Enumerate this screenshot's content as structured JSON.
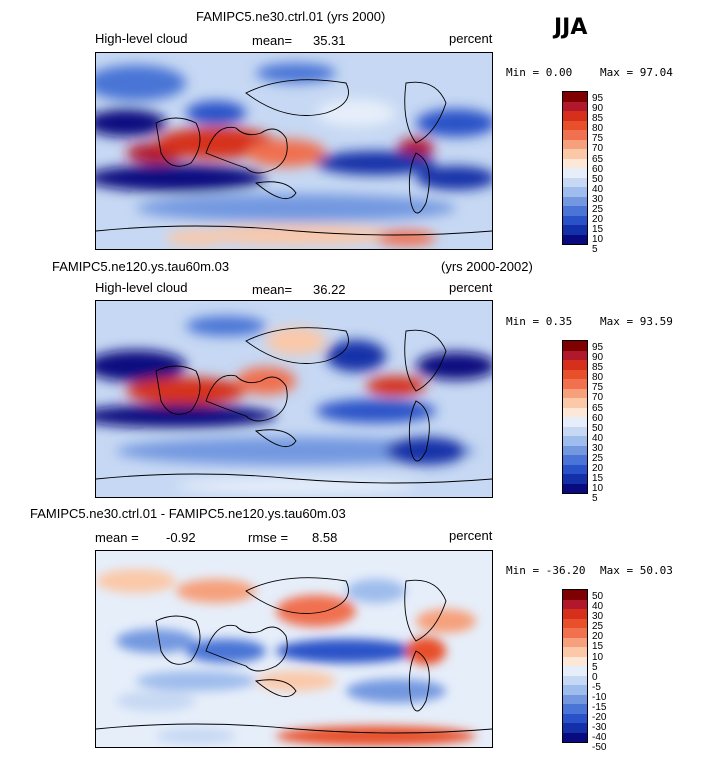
{
  "season": "JJA",
  "panels": [
    {
      "title": "FAMIPC5.ne30.ctrl.01 (yrs 2000)",
      "title_right": "",
      "left_label": "High-level cloud",
      "stat_label": "mean=",
      "stat_value": "35.31",
      "stat2_label": "",
      "stat2_value": "",
      "units": "percent",
      "min": "Min =   0.00",
      "max": "Max =  97.04",
      "colorbar": [
        "95",
        "90",
        "85",
        "80",
        "75",
        "70",
        "65",
        "60",
        "50",
        "40",
        "30",
        "25",
        "20",
        "15",
        "10",
        "5"
      ]
    },
    {
      "title": "FAMIPC5.ne120.ys.tau60m.03",
      "title_right": "(yrs 2000-2002)",
      "left_label": "High-level cloud",
      "stat_label": "mean=",
      "stat_value": "36.22",
      "stat2_label": "",
      "stat2_value": "",
      "units": "percent",
      "min": "Min =   0.35",
      "max": "Max =  93.59",
      "colorbar": [
        "95",
        "90",
        "85",
        "80",
        "75",
        "70",
        "65",
        "60",
        "50",
        "40",
        "30",
        "25",
        "20",
        "15",
        "10",
        "5"
      ]
    },
    {
      "title": "FAMIPC5.ne30.ctrl.01 - FAMIPC5.ne120.ys.tau60m.03",
      "title_right": "",
      "left_label": "mean =",
      "stat_label": "",
      "stat_value": "-0.92",
      "stat2_label": "rmse =",
      "stat2_value": "8.58",
      "units": "percent",
      "min": "Min = -36.20",
      "max": "Max =  50.03",
      "colorbar": [
        "50",
        "40",
        "30",
        "25",
        "20",
        "15",
        "10",
        "5",
        "0",
        "-5",
        "-10",
        "-15",
        "-20",
        "-30",
        "-40",
        "-50"
      ]
    }
  ],
  "palette": [
    "#7f0000",
    "#b2182b",
    "#d6301d",
    "#e8502c",
    "#f07050",
    "#f6a07c",
    "#fbc8a8",
    "#fde8d8",
    "#e6eefa",
    "#c6d8f3",
    "#9ebcec",
    "#7398e0",
    "#4a74d6",
    "#2a52c8",
    "#1430a8",
    "#0a0a80"
  ]
}
